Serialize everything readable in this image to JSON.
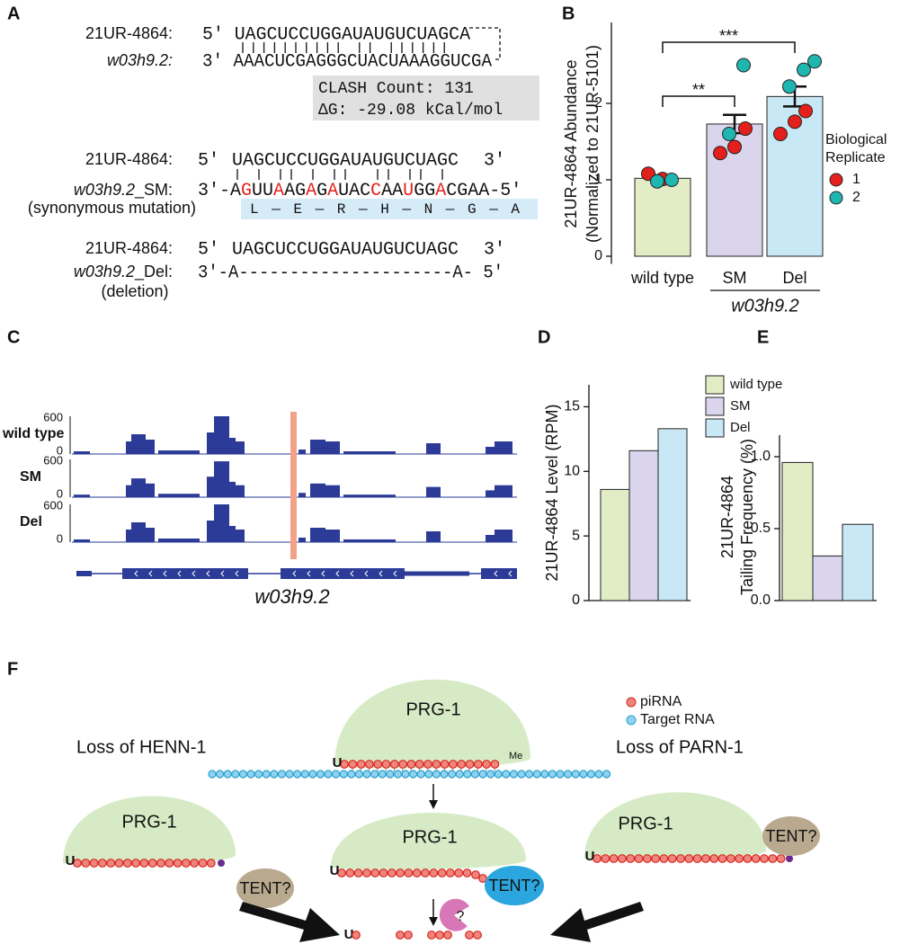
{
  "panel_labels": [
    "A",
    "B",
    "C",
    "D",
    "E",
    "F"
  ],
  "panel_a": {
    "clash": {
      "pirna_label": "21UR-4864:",
      "pirna_seq": "5′ UAGCUCCUGGAUAUGUCUAGCA",
      "target_label": "w03h9.2:",
      "target_seq": "3′ AAACUCGAGGGCUACUAAAGGUCGA",
      "count": "CLASH Count: 131",
      "dg": "ΔG: -29.08 kCal/mol"
    },
    "sm": {
      "pirna_label": "21UR-4864:",
      "pirna_5": "5′",
      "pirna_seq": "UAGCUCCUGGAUAUGUCUAGC",
      "pirna_3": "3′",
      "target_gene": "w03h9.2",
      "target_suffix": "_SM:",
      "note": "(synonymous mutation)",
      "target_seq": [
        {
          "text": "3′-A"
        },
        {
          "text": "G",
          "color": "#e3201b"
        },
        {
          "text": "UU"
        },
        {
          "text": "A",
          "color": "#e3201b"
        },
        {
          "text": "AG"
        },
        {
          "text": "A",
          "color": "#e3201b"
        },
        {
          "text": "G"
        },
        {
          "text": "A",
          "color": "#e3201b"
        },
        {
          "text": "UAC"
        },
        {
          "text": "C",
          "color": "#e3201b"
        },
        {
          "text": "AA"
        },
        {
          "text": "U",
          "color": "#e3201b"
        },
        {
          "text": "GG"
        },
        {
          "text": "A",
          "color": "#e3201b"
        },
        {
          "text": "CGAA-5′"
        }
      ],
      "peptide": "L—E—R—H—N—G—A"
    },
    "del": {
      "pirna_label": "21UR-4864:",
      "pirna_5": "5′",
      "pirna_seq": "UAGCUCCUGGAUAUGUCUAGC",
      "pirna_3": "3′",
      "target_gene": "w03h9.2",
      "target_suffix": "_Del:",
      "note": "(deletion)",
      "target_seq": "3′-A---------------------A- 5′"
    }
  },
  "chart_data": [
    {
      "type": "bar",
      "categories": [
        "wild type",
        "SM",
        "Del"
      ],
      "values": [
        1.02,
        1.73,
        2.09
      ],
      "errors": [
        0.04,
        0.12,
        0.13
      ],
      "colors": [
        "#e2edc6",
        "#dad5ec",
        "#c8e8f6"
      ],
      "ylabel": [
        "21UR-4864 Abundance",
        "(Normalized to 21UR-5101)"
      ],
      "ylim": [
        -0.1,
        3.0
      ],
      "yticks": [
        0,
        1,
        2
      ],
      "group_label": "w03h9.2",
      "significance": [
        {
          "label": "**",
          "categories": [
            "wild type",
            "SM"
          ]
        },
        {
          "label": "***",
          "categories": [
            "wild type",
            "Del"
          ]
        }
      ],
      "legend_title": [
        "Biological",
        "Replicate"
      ],
      "series": [
        {
          "name": "1",
          "color": "#e3201b",
          "values": [
            [
              1.08,
              1.01
            ],
            [
              1.35,
              1.43,
              1.67
            ],
            [
              1.6,
              1.76,
              1.9
            ]
          ]
        },
        {
          "name": "2",
          "color": "#1fb5b0",
          "values": [
            [
              0.98,
              1.0
            ],
            [
              1.6,
              2.5
            ],
            [
              2.22,
              2.44,
              2.55
            ]
          ]
        }
      ]
    },
    {
      "type": "bar",
      "categories": [
        "wild type",
        "SM",
        "Del"
      ],
      "values": [
        8.6,
        11.6,
        13.3
      ],
      "colors": [
        "#e2edc6",
        "#dad5ec",
        "#c8e8f6"
      ],
      "ylabel": "21UR-4864 Level (RPM)",
      "ylim": [
        0,
        16.7
      ],
      "yticks": [
        0,
        5,
        10,
        15
      ],
      "legend": "upper right"
    },
    {
      "type": "bar",
      "categories": [
        "wild type",
        "SM",
        "Del"
      ],
      "values": [
        0.96,
        0.31,
        0.53
      ],
      "colors": [
        "#e2edc6",
        "#dad5ec",
        "#c8e8f6"
      ],
      "ylabel": [
        "21UR-4864",
        "Tailing Frequency (%)"
      ],
      "ylim": [
        0,
        1.15
      ],
      "yticks": [
        {
          "value": 0,
          "label": "0.0"
        },
        {
          "value": 0.5,
          "label": "0.5"
        },
        {
          "value": 1,
          "label": "1.0"
        }
      ]
    }
  ],
  "panel_c": {
    "tracks": [
      "wild type",
      "SM",
      "Del"
    ],
    "scale_max": "600",
    "scale_min": "0",
    "gene": "w03h9.2"
  },
  "panel_f": {
    "complex": "PRG-1",
    "methyl": "Me",
    "legend": [
      "piRNA",
      "Target RNA"
    ],
    "uridine": "U",
    "left_title": "Loss of HENN-1",
    "right_title": "Loss of PARN-1",
    "tent": "TENT?",
    "nuclease": "?"
  }
}
